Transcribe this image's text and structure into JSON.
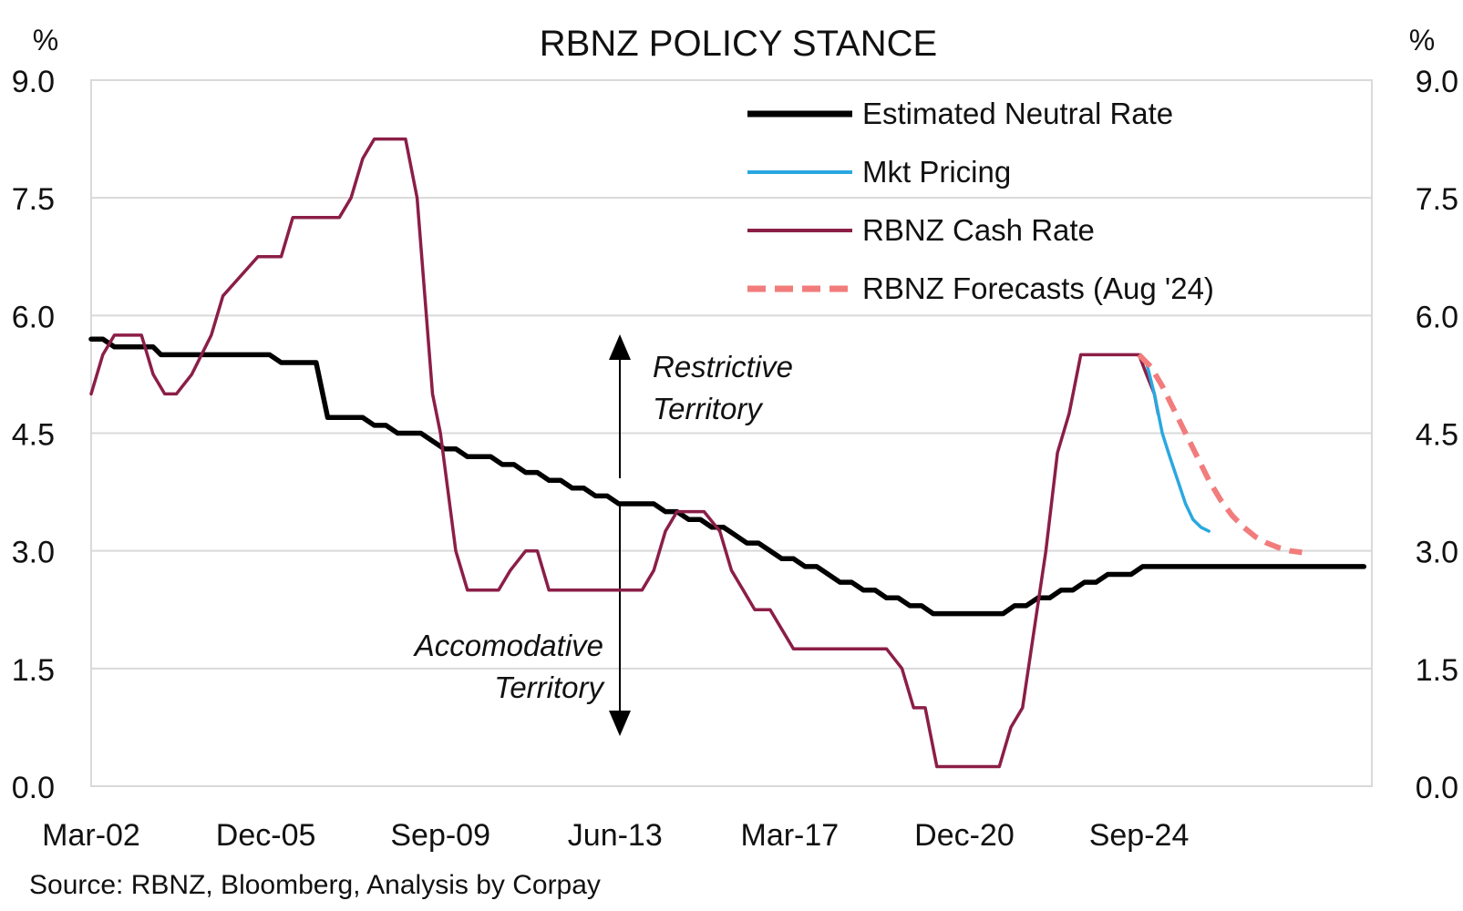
{
  "chart_data": {
    "type": "line",
    "title": "RBNZ POLICY STANCE",
    "unit_left": "%",
    "unit_right": "%",
    "source": "Source: RBNZ, Bloomberg, Analysis by Corpay",
    "ylim": [
      0,
      9
    ],
    "yticks": [
      "0.0",
      "1.5",
      "3.0",
      "4.5",
      "6.0",
      "7.5",
      "9.0"
    ],
    "ytick_values": [
      0,
      1.5,
      3,
      4.5,
      6,
      7.5,
      9
    ],
    "xlim": [
      2002.17,
      2029.67
    ],
    "xticks": [
      "Mar-02",
      "Dec-05",
      "Sep-09",
      "Jun-13",
      "Mar-17",
      "Dec-20",
      "Sep-24"
    ],
    "xtick_values": [
      2002.17,
      2005.92,
      2009.67,
      2013.42,
      2017.17,
      2020.92,
      2024.67
    ],
    "grid": true,
    "legend_position": "top-right",
    "colors": {
      "neutral": "#000000",
      "market": "#29a8e0",
      "cash": "#8b1e47",
      "forecast": "#f27c7c",
      "title": "#8b1e47",
      "grid": "#d9d9d9"
    },
    "annotations": {
      "restrictive_line1": "Restrictive",
      "restrictive_line2": "Territory",
      "accommodative_line1": "Accomodative",
      "accommodative_line2": "Territory"
    },
    "series": [
      {
        "name": "Estimated Neutral Rate",
        "key": "neutral",
        "points": [
          [
            2002.17,
            5.7
          ],
          [
            2002.42,
            5.7
          ],
          [
            2002.67,
            5.6
          ],
          [
            2003.5,
            5.6
          ],
          [
            2003.67,
            5.5
          ],
          [
            2006.0,
            5.5
          ],
          [
            2006.25,
            5.4
          ],
          [
            2007.0,
            5.4
          ],
          [
            2007.25,
            4.7
          ],
          [
            2008.0,
            4.7
          ],
          [
            2008.25,
            4.6
          ],
          [
            2008.5,
            4.6
          ],
          [
            2008.75,
            4.5
          ],
          [
            2009.25,
            4.5
          ],
          [
            2009.5,
            4.4
          ],
          [
            2009.75,
            4.3
          ],
          [
            2010.0,
            4.3
          ],
          [
            2010.25,
            4.2
          ],
          [
            2010.75,
            4.2
          ],
          [
            2011.0,
            4.1
          ],
          [
            2011.25,
            4.1
          ],
          [
            2011.5,
            4.0
          ],
          [
            2011.75,
            4.0
          ],
          [
            2012.0,
            3.9
          ],
          [
            2012.25,
            3.9
          ],
          [
            2012.5,
            3.8
          ],
          [
            2012.75,
            3.8
          ],
          [
            2013.0,
            3.7
          ],
          [
            2013.25,
            3.7
          ],
          [
            2013.5,
            3.6
          ],
          [
            2014.25,
            3.6
          ],
          [
            2014.5,
            3.5
          ],
          [
            2014.75,
            3.5
          ],
          [
            2015.0,
            3.4
          ],
          [
            2015.25,
            3.4
          ],
          [
            2015.5,
            3.3
          ],
          [
            2015.75,
            3.3
          ],
          [
            2016.0,
            3.2
          ],
          [
            2016.25,
            3.1
          ],
          [
            2016.5,
            3.1
          ],
          [
            2016.75,
            3.0
          ],
          [
            2017.0,
            2.9
          ],
          [
            2017.25,
            2.9
          ],
          [
            2017.5,
            2.8
          ],
          [
            2017.75,
            2.8
          ],
          [
            2018.0,
            2.7
          ],
          [
            2018.25,
            2.6
          ],
          [
            2018.5,
            2.6
          ],
          [
            2018.75,
            2.5
          ],
          [
            2019.0,
            2.5
          ],
          [
            2019.25,
            2.4
          ],
          [
            2019.5,
            2.4
          ],
          [
            2019.75,
            2.3
          ],
          [
            2020.0,
            2.3
          ],
          [
            2020.25,
            2.2
          ],
          [
            2021.75,
            2.2
          ],
          [
            2022.0,
            2.3
          ],
          [
            2022.25,
            2.3
          ],
          [
            2022.5,
            2.4
          ],
          [
            2022.75,
            2.4
          ],
          [
            2023.0,
            2.5
          ],
          [
            2023.25,
            2.5
          ],
          [
            2023.5,
            2.6
          ],
          [
            2023.75,
            2.6
          ],
          [
            2024.0,
            2.7
          ],
          [
            2024.5,
            2.7
          ],
          [
            2024.75,
            2.8
          ],
          [
            2029.5,
            2.8
          ]
        ]
      },
      {
        "name": "Mkt Pricing",
        "key": "market",
        "points": [
          [
            2024.83,
            5.4
          ],
          [
            2025.0,
            5.0
          ],
          [
            2025.17,
            4.5
          ],
          [
            2025.33,
            4.2
          ],
          [
            2025.5,
            3.9
          ],
          [
            2025.67,
            3.6
          ],
          [
            2025.83,
            3.4
          ],
          [
            2026.0,
            3.3
          ],
          [
            2026.17,
            3.25
          ]
        ]
      },
      {
        "name": "RBNZ Cash Rate",
        "key": "cash",
        "points": [
          [
            2002.17,
            5.0
          ],
          [
            2002.42,
            5.5
          ],
          [
            2002.67,
            5.75
          ],
          [
            2003.25,
            5.75
          ],
          [
            2003.5,
            5.25
          ],
          [
            2003.75,
            5.0
          ],
          [
            2004.0,
            5.0
          ],
          [
            2004.33,
            5.25
          ],
          [
            2004.75,
            5.75
          ],
          [
            2005.0,
            6.25
          ],
          [
            2005.75,
            6.75
          ],
          [
            2006.25,
            6.75
          ],
          [
            2006.5,
            7.25
          ],
          [
            2007.5,
            7.25
          ],
          [
            2007.75,
            7.5
          ],
          [
            2008.0,
            8.0
          ],
          [
            2008.25,
            8.25
          ],
          [
            2008.92,
            8.25
          ],
          [
            2009.17,
            7.5
          ],
          [
            2009.5,
            5.0
          ],
          [
            2009.67,
            4.5
          ],
          [
            2010.0,
            3.0
          ],
          [
            2010.25,
            2.5
          ],
          [
            2010.92,
            2.5
          ],
          [
            2011.17,
            2.75
          ],
          [
            2011.5,
            3.0
          ],
          [
            2011.75,
            3.0
          ],
          [
            2012.0,
            2.5
          ],
          [
            2014.0,
            2.5
          ],
          [
            2014.25,
            2.75
          ],
          [
            2014.5,
            3.25
          ],
          [
            2014.75,
            3.5
          ],
          [
            2015.33,
            3.5
          ],
          [
            2015.67,
            3.25
          ],
          [
            2015.92,
            2.75
          ],
          [
            2016.17,
            2.5
          ],
          [
            2016.42,
            2.25
          ],
          [
            2016.75,
            2.25
          ],
          [
            2017.0,
            2.0
          ],
          [
            2017.25,
            1.75
          ],
          [
            2019.25,
            1.75
          ],
          [
            2019.58,
            1.5
          ],
          [
            2019.83,
            1.0
          ],
          [
            2020.08,
            1.0
          ],
          [
            2020.33,
            0.25
          ],
          [
            2021.67,
            0.25
          ],
          [
            2021.92,
            0.75
          ],
          [
            2022.17,
            1.0
          ],
          [
            2022.42,
            2.0
          ],
          [
            2022.67,
            3.0
          ],
          [
            2022.92,
            4.25
          ],
          [
            2023.17,
            4.75
          ],
          [
            2023.42,
            5.5
          ],
          [
            2024.67,
            5.5
          ],
          [
            2024.83,
            5.25
          ],
          [
            2025.0,
            5.0
          ],
          [
            2025.08,
            4.75
          ]
        ]
      },
      {
        "name": "RBNZ Forecasts (Aug '24)",
        "key": "forecast",
        "points": [
          [
            2024.67,
            5.5
          ],
          [
            2024.92,
            5.35
          ],
          [
            2025.17,
            5.1
          ],
          [
            2025.42,
            4.8
          ],
          [
            2025.67,
            4.5
          ],
          [
            2025.92,
            4.2
          ],
          [
            2026.17,
            3.9
          ],
          [
            2026.42,
            3.65
          ],
          [
            2026.67,
            3.45
          ],
          [
            2026.92,
            3.3
          ],
          [
            2027.17,
            3.18
          ],
          [
            2027.42,
            3.1
          ],
          [
            2027.67,
            3.04
          ],
          [
            2027.92,
            3.0
          ],
          [
            2028.17,
            2.98
          ]
        ]
      }
    ]
  }
}
